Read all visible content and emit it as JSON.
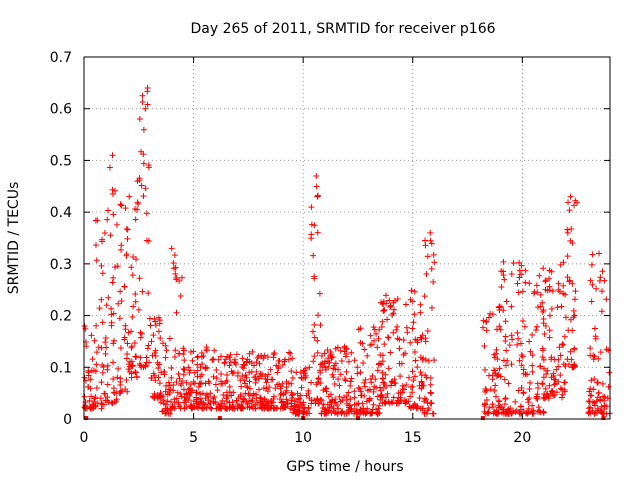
{
  "chart_data": {
    "type": "scatter",
    "title": "Day 265 of 2011, SRMTID for receiver p166",
    "xlabel": "GPS time / hours",
    "ylabel": "SRMTID / TECUs",
    "xlim": [
      0,
      24
    ],
    "ylim": [
      0,
      0.7
    ],
    "xticks": [
      0,
      5,
      10,
      15,
      20
    ],
    "xtick_labels": [
      "0",
      "5",
      "10",
      "15",
      "20"
    ],
    "yticks": [
      0,
      0.1,
      0.2,
      0.3,
      0.4,
      0.5,
      0.6,
      0.7
    ],
    "ytick_labels": [
      "0",
      "0.1",
      "0.2",
      "0.3",
      "0.4",
      "0.5",
      "0.6",
      "0.7"
    ],
    "grid": true,
    "marker": "plus",
    "series_color": "#ff0000",
    "series": [
      {
        "name": "SRMTID",
        "envelope_description": "Dense cloud of plus markers; per-hour typical range of values",
        "segments": [
          {
            "x_start": 0.0,
            "x_end": 0.5,
            "low": 0.02,
            "high": 0.18
          },
          {
            "x_start": 0.5,
            "x_end": 1.0,
            "low": 0.02,
            "high": 0.42
          },
          {
            "x_start": 1.0,
            "x_end": 1.5,
            "low": 0.03,
            "high": 0.5
          },
          {
            "x_start": 1.5,
            "x_end": 2.0,
            "low": 0.05,
            "high": 0.42
          },
          {
            "x_start": 2.0,
            "x_end": 2.5,
            "low": 0.08,
            "high": 0.46
          },
          {
            "x_start": 2.5,
            "x_end": 3.0,
            "low": 0.1,
            "high": 0.64
          },
          {
            "x_start": 3.0,
            "x_end": 3.5,
            "low": 0.04,
            "high": 0.2
          },
          {
            "x_start": 3.5,
            "x_end": 4.0,
            "low": 0.01,
            "high": 0.16
          },
          {
            "x_start": 4.0,
            "x_end": 4.5,
            "low": 0.02,
            "high": 0.33
          },
          {
            "x_start": 4.5,
            "x_end": 6.0,
            "low": 0.02,
            "high": 0.14
          },
          {
            "x_start": 6.0,
            "x_end": 9.5,
            "low": 0.02,
            "high": 0.13
          },
          {
            "x_start": 9.5,
            "x_end": 10.3,
            "low": 0.01,
            "high": 0.1
          },
          {
            "x_start": 10.3,
            "x_end": 10.8,
            "low": 0.03,
            "high": 0.47
          },
          {
            "x_start": 10.8,
            "x_end": 12.5,
            "low": 0.01,
            "high": 0.14
          },
          {
            "x_start": 12.5,
            "x_end": 13.5,
            "low": 0.01,
            "high": 0.18
          },
          {
            "x_start": 13.5,
            "x_end": 14.8,
            "low": 0.03,
            "high": 0.24
          },
          {
            "x_start": 14.8,
            "x_end": 15.5,
            "low": 0.02,
            "high": 0.26
          },
          {
            "x_start": 15.5,
            "x_end": 16.0,
            "low": 0.01,
            "high": 0.36
          },
          {
            "x_start": 18.2,
            "x_end": 19.0,
            "low": 0.01,
            "high": 0.22
          },
          {
            "x_start": 19.0,
            "x_end": 20.0,
            "low": 0.01,
            "high": 0.31
          },
          {
            "x_start": 20.0,
            "x_end": 21.0,
            "low": 0.01,
            "high": 0.3
          },
          {
            "x_start": 21.0,
            "x_end": 22.0,
            "low": 0.04,
            "high": 0.31
          },
          {
            "x_start": 22.0,
            "x_end": 22.5,
            "low": 0.1,
            "high": 0.43
          },
          {
            "x_start": 23.0,
            "x_end": 24.0,
            "low": 0.01,
            "high": 0.32
          }
        ],
        "highlights": [
          {
            "x": 2.9,
            "y": 0.64
          },
          {
            "x": 2.8,
            "y": 0.6
          },
          {
            "x": 2.55,
            "y": 0.58
          },
          {
            "x": 1.3,
            "y": 0.51
          },
          {
            "x": 10.6,
            "y": 0.47
          },
          {
            "x": 10.65,
            "y": 0.43
          },
          {
            "x": 22.2,
            "y": 0.43
          },
          {
            "x": 15.8,
            "y": 0.36
          },
          {
            "x": 4.0,
            "y": 0.33
          },
          {
            "x": 23.5,
            "y": 0.32
          }
        ]
      }
    ]
  }
}
